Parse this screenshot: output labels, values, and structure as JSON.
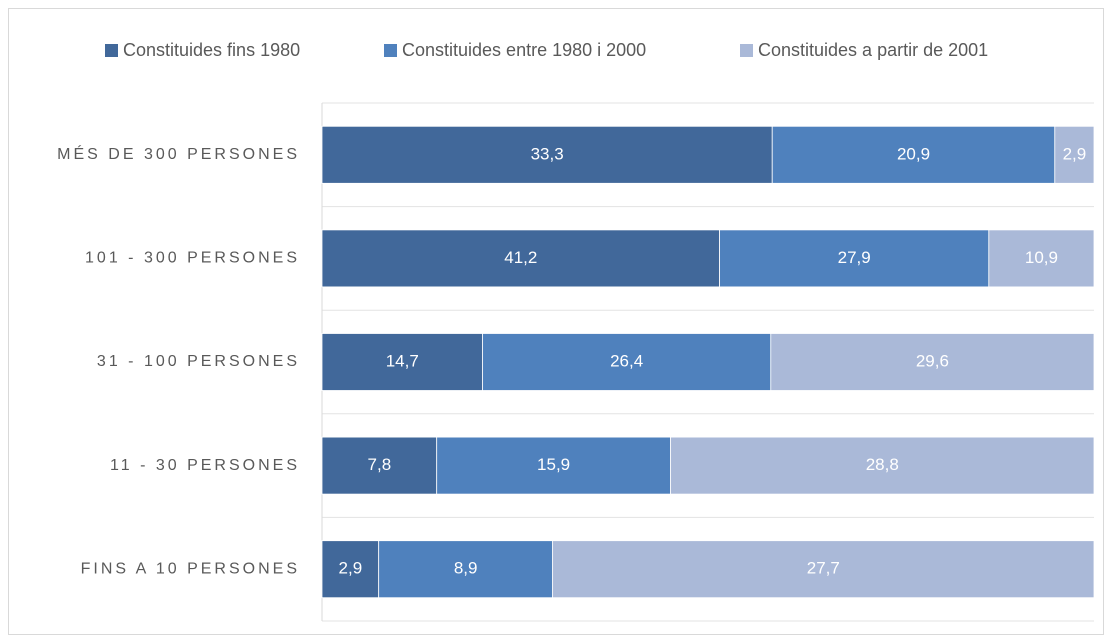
{
  "chart_data": {
    "type": "bar",
    "orientation": "horizontal",
    "stacking": "percent",
    "categories": [
      "MÉS DE 300 PERSONES",
      "101 - 300 PERSONES",
      "31 - 100 PERSONES",
      "11 - 30 PERSONES",
      "FINS A 10 PERSONES"
    ],
    "series": [
      {
        "name": "Constituides fins 1980",
        "color": "#41689a",
        "values": [
          33.3,
          41.2,
          14.7,
          7.8,
          2.9
        ],
        "value_labels": [
          "33,3",
          "41,2",
          "14,7",
          "7,8",
          "2,9"
        ]
      },
      {
        "name": "Constituides entre 1980 i 2000",
        "color": "#4f81bd",
        "values": [
          20.9,
          27.9,
          26.4,
          15.9,
          8.9
        ],
        "value_labels": [
          "20,9",
          "27,9",
          "26,4",
          "15,9",
          "8,9"
        ]
      },
      {
        "name": "Constituides a partir de 2001",
        "color": "#aab9d8",
        "values": [
          2.9,
          10.9,
          29.6,
          28.8,
          27.7
        ],
        "value_labels": [
          "2,9",
          "10,9",
          "29,6",
          "28,8",
          "27,7"
        ]
      }
    ],
    "legend": "top",
    "grid": true
  }
}
